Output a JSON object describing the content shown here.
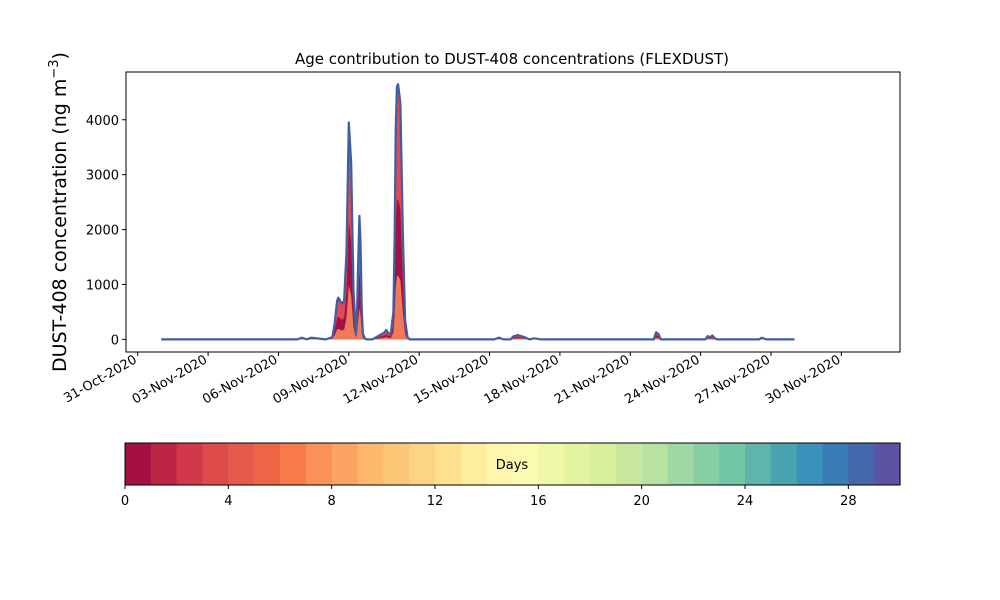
{
  "chart_data": {
    "type": "area",
    "title": "Age contribution to DUST-408 concentrations (FLEXDUST)",
    "ylabel": "DUST-408 concentration (ng m",
    "ylabel_superscript": "−3",
    "ylabel_close": ")",
    "ylim": [
      -230,
      4870
    ],
    "yticks": [
      0,
      1000,
      2000,
      3000,
      4000
    ],
    "ytick_labels": [
      "0",
      "1000",
      "2000",
      "3000",
      "4000"
    ],
    "xlim_days": [
      -0.5,
      32.5
    ],
    "x_ticks": [
      {
        "label": "31-Oct-2020",
        "day": 0
      },
      {
        "label": "03-Nov-2020",
        "day": 3
      },
      {
        "label": "06-Nov-2020",
        "day": 6
      },
      {
        "label": "09-Nov-2020",
        "day": 9
      },
      {
        "label": "12-Nov-2020",
        "day": 12
      },
      {
        "label": "15-Nov-2020",
        "day": 15
      },
      {
        "label": "18-Nov-2020",
        "day": 18
      },
      {
        "label": "21-Nov-2020",
        "day": 21
      },
      {
        "label": "24-Nov-2020",
        "day": 24
      },
      {
        "label": "27-Nov-2020",
        "day": 27
      },
      {
        "label": "30-Nov-2020",
        "day": 30
      }
    ],
    "total_series": {
      "x_days": [
        1.0,
        6.8,
        7.0,
        7.2,
        7.4,
        8.0,
        8.3,
        8.4,
        8.5,
        8.55,
        8.7,
        8.8,
        8.9,
        9.0,
        9.1,
        9.2,
        9.3,
        9.35,
        9.4,
        9.45,
        9.5,
        9.55,
        9.6,
        9.7,
        9.8,
        9.9,
        10.0,
        10.5,
        10.6,
        10.7,
        10.8,
        10.9,
        10.95,
        11.0,
        11.05,
        11.1,
        11.2,
        11.3,
        11.4,
        11.5,
        11.6,
        11.7,
        12.0,
        15.2,
        15.4,
        15.6,
        15.9,
        16.0,
        16.2,
        16.5,
        16.7,
        16.9,
        17.2,
        21.0,
        21.9,
        22.0,
        22.1,
        22.2,
        22.3,
        22.5,
        23.0,
        24.2,
        24.3,
        24.4,
        24.5,
        24.6,
        24.7,
        25.2,
        26.5,
        26.6,
        26.8,
        28.0
      ],
      "y_ngm3": [
        0,
        0,
        30,
        0,
        30,
        0,
        40,
        300,
        700,
        760,
        650,
        700,
        1600,
        3950,
        3200,
        900,
        100,
        500,
        1400,
        2250,
        1800,
        600,
        100,
        10,
        0,
        0,
        0,
        120,
        170,
        100,
        130,
        500,
        1800,
        3800,
        4600,
        4650,
        4300,
        2000,
        350,
        40,
        0,
        0,
        0,
        0,
        30,
        0,
        0,
        50,
        80,
        40,
        0,
        20,
        0,
        0,
        0,
        0,
        130,
        100,
        0,
        0,
        0,
        0,
        60,
        40,
        70,
        20,
        0,
        0,
        0,
        30,
        0,
        0
      ]
    },
    "colorbar": {
      "label": "Days",
      "range": [
        0,
        30
      ],
      "ticks": [
        0,
        4,
        8,
        12,
        16,
        20,
        24,
        28
      ],
      "tick_labels": [
        "0",
        "4",
        "8",
        "12",
        "16",
        "20",
        "24",
        "28"
      ],
      "colors": [
        "#a50f43",
        "#bd2546",
        "#d1384a",
        "#df4b4b",
        "#e65a4c",
        "#ef6647",
        "#f67a4a",
        "#f99158",
        "#fca563",
        "#fdb86c",
        "#fdc576",
        "#fdd483",
        "#fee08f",
        "#feec9f",
        "#fff5ab",
        "#fbfab3",
        "#f0f8a8",
        "#e4f39f",
        "#d9ef9b",
        "#c9e89f",
        "#b8e2a1",
        "#9fd8a4",
        "#86cfa5",
        "#71c6a6",
        "#5fb5a9",
        "#4aa4b0",
        "#3a91b9",
        "#3a7db6",
        "#4466ad",
        "#5b53a4"
      ]
    },
    "colors": {
      "total_line": "#3f5fa3",
      "young_fill": "#a50f43",
      "main_fill": "#e04a55",
      "light_fill": "#ee7a5a"
    }
  }
}
